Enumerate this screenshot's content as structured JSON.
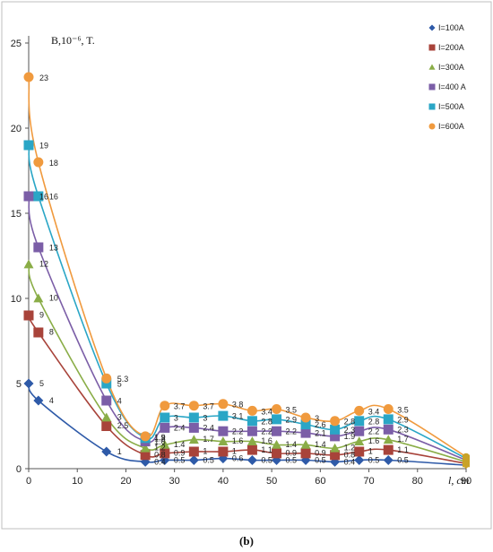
{
  "caption": "(b)",
  "chart_data": {
    "type": "line",
    "ylabel": "B,10⁻⁶, T.",
    "xlabel": "l, cm",
    "xlim": [
      0,
      90
    ],
    "ylim": [
      0,
      25
    ],
    "x_ticks": [
      "0",
      "10",
      "20",
      "30",
      "40",
      "50",
      "60",
      "70",
      "80",
      "90"
    ],
    "y_ticks": [
      "0",
      "5",
      "10",
      "15",
      "20",
      "25"
    ],
    "legend_position": "top-right",
    "x": [
      0,
      2,
      16,
      24,
      28,
      34,
      40,
      46,
      51,
      57,
      63,
      68,
      74,
      90
    ],
    "series": [
      {
        "name": "I=100A",
        "color": "#2e5aa8",
        "marker": "diamond",
        "values": [
          5,
          4,
          1,
          0.4,
          0.5,
          0.5,
          0.6,
          0.5,
          0.5,
          0.5,
          0.4,
          0.5,
          0.5,
          0.2
        ],
        "labels": [
          "5",
          "4",
          "1",
          "0.4",
          "0.5",
          "0.5",
          "0.6",
          "0.5",
          "0.5",
          "0.5",
          "0.4",
          "0.5",
          "0.5",
          ""
        ]
      },
      {
        "name": "I=200A",
        "color": "#a8433a",
        "marker": "square",
        "values": [
          9,
          8,
          2.5,
          0.8,
          0.9,
          1,
          1,
          1.1,
          0.9,
          0.9,
          0.8,
          1,
          1.1,
          0.3
        ],
        "labels": [
          "9",
          "8",
          "2.5",
          "0.8",
          "0.9",
          "1",
          "1",
          "1.1",
          "0.9",
          "0.9",
          "0.8",
          "1",
          "1.1",
          ""
        ]
      },
      {
        "name": "I=300A",
        "color": "#8aad47",
        "marker": "triangle",
        "values": [
          12,
          10,
          3,
          1.2,
          1.4,
          1.7,
          1.6,
          1.6,
          1.4,
          1.4,
          1.2,
          1.6,
          1.7,
          0.4
        ],
        "labels": [
          "12",
          "10",
          "3",
          "1.2",
          "1.4",
          "1.7",
          "1.6",
          "1.6",
          "1.4",
          "1.4",
          "1.2",
          "1.6",
          "1.7",
          ""
        ]
      },
      {
        "name": "I=400 A",
        "color": "#7b5ea7",
        "marker": "square",
        "values": [
          16,
          13,
          4,
          1.6,
          2.4,
          2.4,
          2.2,
          2.2,
          2.2,
          2.1,
          1.9,
          2.2,
          2.3,
          0.5
        ],
        "labels": [
          "16",
          "13",
          "4",
          "1.6",
          "2.4",
          "2.4",
          "2.2",
          "2.2",
          "2.2",
          "2.1",
          "1.9",
          "2.2",
          "2.3",
          ""
        ]
      },
      {
        "name": "I=500A",
        "color": "#2aa6c6",
        "marker": "square",
        "values": [
          19,
          16,
          5,
          1.8,
          3,
          3,
          3.1,
          2.8,
          2.9,
          2.6,
          2.3,
          2.8,
          2.9,
          0.6
        ],
        "labels": [
          "19",
          "16",
          "5",
          "1.8",
          "3",
          "3",
          "3.1",
          "2.8",
          "2.9",
          "2.6",
          "2.3",
          "2.8",
          "2.9",
          ""
        ]
      },
      {
        "name": "I=600A",
        "color": "#f09a3e",
        "marker": "circle",
        "values": [
          23,
          18,
          5.3,
          1.9,
          3.7,
          3.7,
          3.8,
          3.4,
          3.5,
          3,
          2.8,
          3.4,
          3.5,
          0.7
        ],
        "labels": [
          "23",
          "18",
          "5.3",
          "1.9",
          "3.7",
          "3.7",
          "3.8",
          "3.4",
          "3.5",
          "3",
          "2.8",
          "3.4",
          "3.5",
          ""
        ]
      }
    ],
    "end_point_color": "#c9a227"
  }
}
